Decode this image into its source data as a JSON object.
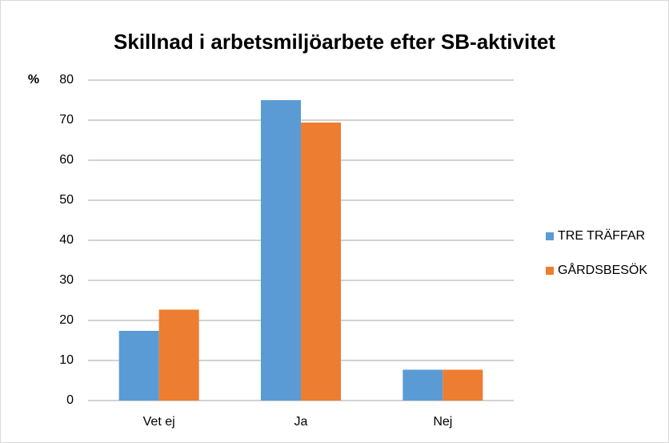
{
  "chart_data": {
    "type": "bar",
    "title": "Skillnad i arbetsmiljöarbete efter SB-aktivitet",
    "y_label": "%",
    "categories": [
      "Vet ej",
      "Ja",
      "Nej"
    ],
    "series": [
      {
        "name": "TRE TRÄFFAR",
        "color": "#5b9bd5",
        "values": [
          17.4,
          75,
          7.7
        ]
      },
      {
        "name": "GÅRDSBESÖK",
        "color": "#ed7d31",
        "values": [
          22.7,
          69.4,
          7.7
        ]
      }
    ],
    "ylim": [
      0,
      80
    ],
    "yticks": [
      0,
      10,
      20,
      30,
      40,
      50,
      60,
      70,
      80
    ],
    "grid": true,
    "legend": "right"
  }
}
